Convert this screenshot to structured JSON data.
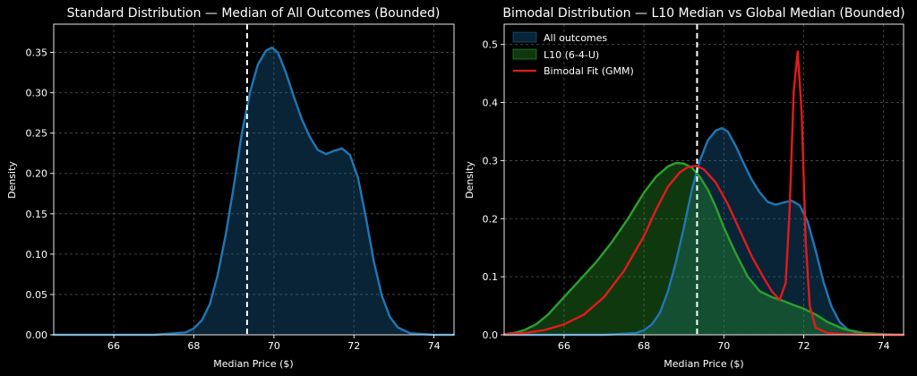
{
  "chart_data": [
    {
      "type": "area",
      "title": "Standard Distribution — Median of All Outcomes (Bounded)",
      "xlabel": "Median Price ($)",
      "ylabel": "Density",
      "xlim": [
        64.5,
        74.5
      ],
      "ylim": [
        0,
        0.385
      ],
      "xticks": [
        66,
        68,
        70,
        72,
        74
      ],
      "yticks": [
        0.0,
        0.05,
        0.1,
        0.15,
        0.2,
        0.25,
        0.3,
        0.35
      ],
      "grid": true,
      "vline": {
        "x": 69.33,
        "style": "dashed",
        "color": "#ffffff"
      },
      "series": [
        {
          "name": "All outcomes",
          "color": "#1f77b4",
          "fill": "#1f77b4",
          "fill_opacity": 0.3,
          "x": [
            64.5,
            67.0,
            67.8,
            68.0,
            68.2,
            68.4,
            68.6,
            68.8,
            69.0,
            69.2,
            69.4,
            69.6,
            69.8,
            69.95,
            70.1,
            70.3,
            70.5,
            70.7,
            70.9,
            71.1,
            71.3,
            71.5,
            71.7,
            71.9,
            72.1,
            72.3,
            72.5,
            72.7,
            72.9,
            73.1,
            73.4,
            74.0,
            74.5
          ],
          "y": [
            0,
            0,
            0.003,
            0.008,
            0.018,
            0.038,
            0.075,
            0.125,
            0.185,
            0.25,
            0.3,
            0.335,
            0.352,
            0.356,
            0.35,
            0.325,
            0.295,
            0.267,
            0.245,
            0.229,
            0.224,
            0.228,
            0.231,
            0.223,
            0.195,
            0.145,
            0.09,
            0.048,
            0.022,
            0.009,
            0.002,
            0,
            0
          ]
        }
      ]
    },
    {
      "type": "area",
      "title": "Bimodal Distribution — L10 Median vs Global Median (Bounded)",
      "xlabel": "Median Price ($)",
      "ylabel": "Density",
      "xlim": [
        64.5,
        74.5
      ],
      "ylim": [
        0,
        0.535
      ],
      "xticks": [
        66,
        68,
        70,
        72,
        74
      ],
      "yticks": [
        0.0,
        0.1,
        0.2,
        0.3,
        0.4,
        0.5
      ],
      "grid": true,
      "legend": "top-left",
      "vline": {
        "x": 69.33,
        "style": "dashed",
        "color": "#ffffff"
      },
      "series": [
        {
          "name": "All outcomes",
          "color": "#1f77b4",
          "fill": "#1f77b4",
          "fill_opacity": 0.3,
          "x": [
            64.5,
            67.0,
            67.8,
            68.0,
            68.2,
            68.4,
            68.6,
            68.8,
            69.0,
            69.2,
            69.4,
            69.6,
            69.8,
            69.95,
            70.1,
            70.3,
            70.5,
            70.7,
            70.9,
            71.1,
            71.3,
            71.5,
            71.7,
            71.9,
            72.1,
            72.3,
            72.5,
            72.7,
            72.9,
            73.1,
            73.4,
            74.0,
            74.5
          ],
          "y": [
            0,
            0,
            0.003,
            0.008,
            0.018,
            0.038,
            0.075,
            0.125,
            0.185,
            0.25,
            0.3,
            0.335,
            0.352,
            0.356,
            0.35,
            0.325,
            0.295,
            0.267,
            0.245,
            0.229,
            0.224,
            0.228,
            0.231,
            0.223,
            0.195,
            0.145,
            0.09,
            0.048,
            0.022,
            0.009,
            0.002,
            0,
            0
          ]
        },
        {
          "name": "L10 (6-4-U)",
          "color": "#2ca02c",
          "fill": "#2ca02c",
          "fill_opacity": 0.35,
          "x": [
            64.5,
            64.8,
            65.0,
            65.3,
            65.6,
            66.0,
            66.4,
            66.8,
            67.2,
            67.6,
            68.0,
            68.3,
            68.6,
            68.8,
            69.0,
            69.2,
            69.4,
            69.6,
            69.8,
            70.0,
            70.3,
            70.6,
            70.9,
            71.2,
            71.5,
            71.8,
            72.0,
            72.3,
            72.6,
            73.0,
            73.5,
            74.0,
            74.5
          ],
          "y": [
            0.001,
            0.004,
            0.008,
            0.018,
            0.035,
            0.065,
            0.095,
            0.125,
            0.16,
            0.2,
            0.245,
            0.272,
            0.29,
            0.296,
            0.295,
            0.288,
            0.272,
            0.25,
            0.22,
            0.185,
            0.14,
            0.1,
            0.075,
            0.065,
            0.058,
            0.05,
            0.045,
            0.035,
            0.022,
            0.01,
            0.003,
            0.001,
            0
          ]
        },
        {
          "name": "Bimodal Fit (GMM)",
          "color": "#e31a1c",
          "fill": "none",
          "x": [
            64.5,
            65.0,
            65.5,
            66.0,
            66.5,
            67.0,
            67.5,
            68.0,
            68.3,
            68.6,
            68.9,
            69.1,
            69.3,
            69.5,
            69.8,
            70.1,
            70.4,
            70.7,
            71.0,
            71.2,
            71.4,
            71.55,
            71.65,
            71.75,
            71.85,
            71.95,
            72.05,
            72.15,
            72.3,
            72.6,
            73.0,
            74.0,
            74.5
          ],
          "y": [
            0.001,
            0.003,
            0.008,
            0.018,
            0.035,
            0.065,
            0.11,
            0.17,
            0.215,
            0.255,
            0.28,
            0.289,
            0.291,
            0.285,
            0.262,
            0.225,
            0.18,
            0.135,
            0.098,
            0.075,
            0.06,
            0.09,
            0.22,
            0.42,
            0.488,
            0.38,
            0.16,
            0.05,
            0.012,
            0.003,
            0.001,
            0,
            0
          ]
        }
      ]
    }
  ]
}
